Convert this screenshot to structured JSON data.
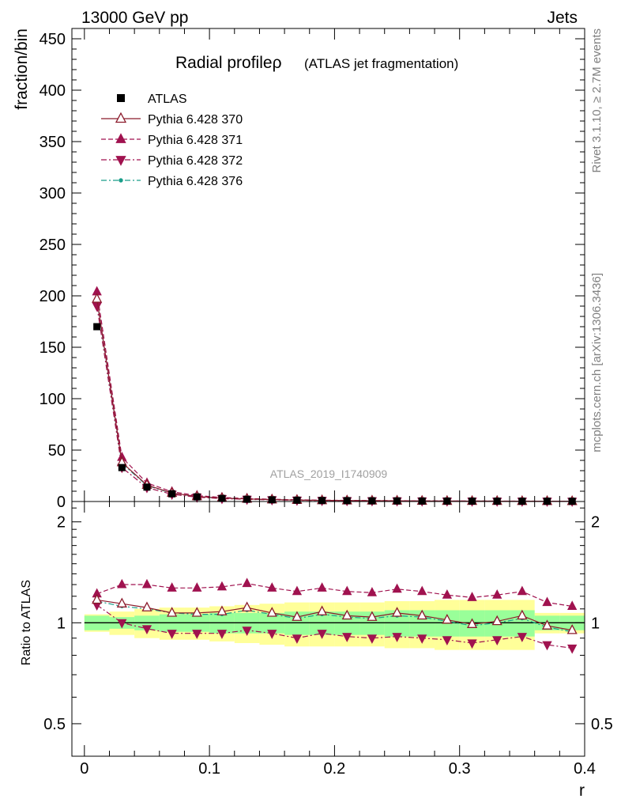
{
  "header": {
    "left": "13000 GeV pp",
    "right": "Jets"
  },
  "side_labels": {
    "rivet": "Rivet 3.1.10, ≥ 2.7M events",
    "mcplots": "mcplots.cern.ch [arXiv:1306.3436]"
  },
  "watermark": "ATLAS_2019_I1740909",
  "colors": {
    "data": "#000000",
    "py370": "#8b1a2b",
    "py371": "#a0124f",
    "py372": "#a0124f",
    "py376": "#1a9e8a",
    "band_inner": "#99ff99",
    "band_outer": "#ffff99"
  },
  "chart_data": [
    {
      "type": "line",
      "title": "Radial profileρ",
      "subtitle": "(ATLAS jet fragmentation)",
      "ylabel": "fraction/bin",
      "xlabel": "r",
      "xlim": [
        -0.01,
        0.4
      ],
      "ylim": [
        0,
        460
      ],
      "yticks": [
        0,
        50,
        100,
        150,
        200,
        250,
        300,
        350,
        400,
        450
      ],
      "xticks": [
        0,
        0.1,
        0.2,
        0.3,
        0.4
      ],
      "x": [
        0.01,
        0.03,
        0.05,
        0.07,
        0.09,
        0.11,
        0.13,
        0.15,
        0.17,
        0.19,
        0.21,
        0.23,
        0.25,
        0.27,
        0.29,
        0.31,
        0.33,
        0.35,
        0.37,
        0.39
      ],
      "legend_position": "top-left",
      "series": [
        {
          "name": "ATLAS",
          "key": "data",
          "marker": "square",
          "values": [
            170,
            33,
            14,
            7.5,
            4.5,
            3.0,
            2.2,
            1.7,
            1.3,
            1.0,
            0.85,
            0.7,
            0.6,
            0.5,
            0.45,
            0.4,
            0.35,
            0.3,
            0.28,
            0.25
          ]
        },
        {
          "name": "Pythia 6.428 370",
          "key": "py370",
          "marker": "triangle-up-open",
          "dash": "solid",
          "values": [
            197,
            38,
            16,
            8.2,
            4.9,
            3.3,
            2.5,
            1.8,
            1.4,
            1.1,
            0.9,
            0.75,
            0.65,
            0.53,
            0.45,
            0.4,
            0.36,
            0.32,
            0.28,
            0.24
          ]
        },
        {
          "name": "Pythia 6.428 371",
          "key": "py371",
          "marker": "triangle-up",
          "dash": "dashed",
          "values": [
            204,
            43,
            18,
            9.5,
            5.8,
            3.9,
            3.0,
            2.2,
            1.7,
            1.3,
            1.1,
            0.9,
            0.8,
            0.63,
            0.55,
            0.48,
            0.43,
            0.38,
            0.33,
            0.28
          ]
        },
        {
          "name": "Pythia 6.428 372",
          "key": "py372",
          "marker": "triangle-down",
          "dash": "dashdot",
          "values": [
            190,
            33,
            13.5,
            7.0,
            4.2,
            2.8,
            2.1,
            1.6,
            1.2,
            0.92,
            0.78,
            0.64,
            0.55,
            0.45,
            0.39,
            0.34,
            0.31,
            0.27,
            0.24,
            0.21
          ]
        },
        {
          "name": "Pythia 6.428 376",
          "key": "py376",
          "marker": "dot",
          "dash": "dashdot",
          "values": [
            196,
            37,
            15.5,
            8.0,
            4.8,
            3.2,
            2.4,
            1.8,
            1.35,
            1.05,
            0.88,
            0.72,
            0.63,
            0.52,
            0.44,
            0.39,
            0.35,
            0.31,
            0.27,
            0.23
          ]
        }
      ]
    },
    {
      "type": "line",
      "ylabel": "Ratio to ATLAS",
      "xlabel": "r",
      "xlim": [
        -0.01,
        0.4
      ],
      "ylim": [
        0.4,
        2.3
      ],
      "ylog": true,
      "yticks": [
        0.5,
        1,
        2
      ],
      "xticks": [
        0,
        0.1,
        0.2,
        0.3,
        0.4
      ],
      "x": [
        0.01,
        0.03,
        0.05,
        0.07,
        0.09,
        0.11,
        0.13,
        0.15,
        0.17,
        0.19,
        0.21,
        0.23,
        0.25,
        0.27,
        0.29,
        0.31,
        0.33,
        0.35,
        0.37,
        0.39
      ],
      "band_inner": [
        0.05,
        0.04,
        0.05,
        0.06,
        0.06,
        0.07,
        0.07,
        0.07,
        0.08,
        0.08,
        0.08,
        0.08,
        0.09,
        0.09,
        0.09,
        0.09,
        0.09,
        0.09,
        0.05,
        0.05
      ],
      "band_outer": [
        0.06,
        0.08,
        0.1,
        0.11,
        0.11,
        0.12,
        0.13,
        0.14,
        0.15,
        0.15,
        0.15,
        0.15,
        0.16,
        0.16,
        0.17,
        0.17,
        0.17,
        0.17,
        0.07,
        0.07
      ],
      "series": [
        {
          "name": "Pythia 6.428 370",
          "key": "py370",
          "marker": "triangle-up-open",
          "dash": "solid",
          "values": [
            1.17,
            1.14,
            1.11,
            1.07,
            1.07,
            1.08,
            1.11,
            1.07,
            1.04,
            1.08,
            1.05,
            1.04,
            1.07,
            1.05,
            1.02,
            0.99,
            1.01,
            1.05,
            0.98,
            0.95
          ]
        },
        {
          "name": "Pythia 6.428 371",
          "key": "py371",
          "marker": "triangle-up",
          "dash": "dashed",
          "values": [
            1.22,
            1.3,
            1.3,
            1.27,
            1.27,
            1.28,
            1.31,
            1.27,
            1.24,
            1.27,
            1.24,
            1.23,
            1.26,
            1.24,
            1.21,
            1.19,
            1.21,
            1.24,
            1.15,
            1.12
          ]
        },
        {
          "name": "Pythia 6.428 372",
          "key": "py372",
          "marker": "triangle-down",
          "dash": "dashdot",
          "values": [
            1.13,
            1.0,
            0.96,
            0.93,
            0.93,
            0.93,
            0.95,
            0.93,
            0.9,
            0.93,
            0.91,
            0.9,
            0.91,
            0.9,
            0.89,
            0.87,
            0.89,
            0.91,
            0.86,
            0.84
          ]
        },
        {
          "name": "Pythia 6.428 376",
          "key": "py376",
          "marker": "dot",
          "dash": "dashdot",
          "values": [
            1.16,
            1.12,
            1.1,
            1.07,
            1.06,
            1.06,
            1.09,
            1.06,
            1.03,
            1.06,
            1.04,
            1.03,
            1.05,
            1.04,
            1.01,
            0.98,
            1.0,
            1.03,
            0.97,
            0.94
          ]
        }
      ]
    }
  ]
}
